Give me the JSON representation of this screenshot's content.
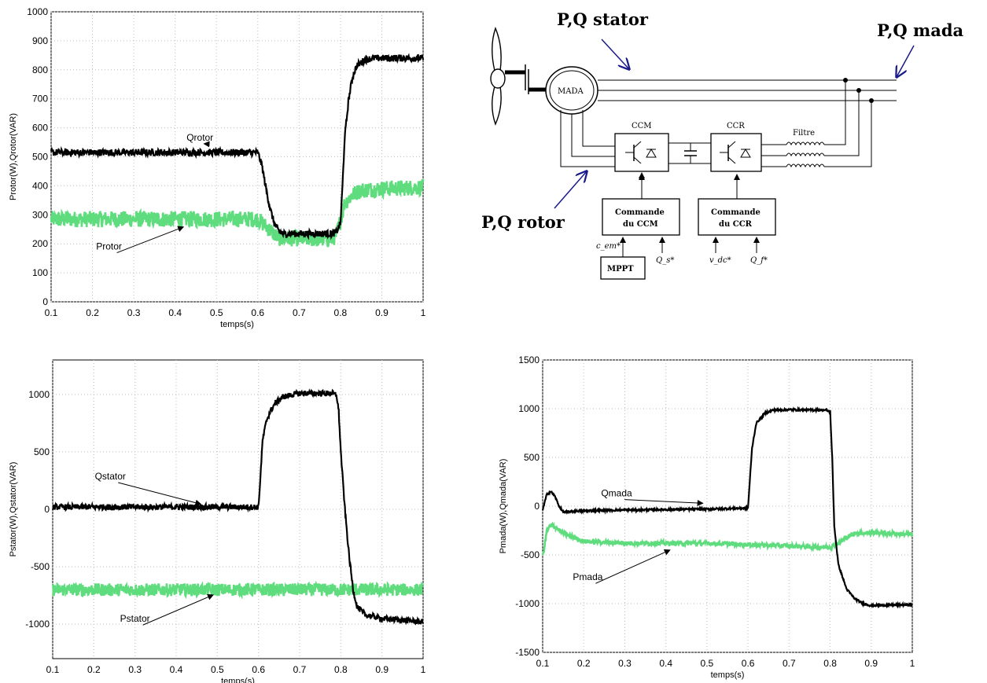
{
  "chart_data": [
    {
      "type": "line",
      "xlabel": "temps(s)",
      "ylabel": "Protor(W),Qrotor(VAR)",
      "xlim": [
        0.1,
        1
      ],
      "ylim": [
        0,
        1000
      ],
      "xticks": [
        "0.1",
        "0.2",
        "0.3",
        "0.4",
        "0.5",
        "0.6",
        "0.7",
        "0.8",
        "0.9",
        "1"
      ],
      "yticks": [
        "0",
        "100",
        "200",
        "300",
        "400",
        "500",
        "600",
        "700",
        "800",
        "900",
        "1000"
      ],
      "grid": true,
      "annotations": [
        {
          "text": "Qrotor",
          "x": 0.46,
          "y": 555,
          "arrow_to": [
            0.47,
            545
          ]
        },
        {
          "text": "Protor",
          "x": 0.24,
          "y": 180,
          "arrow_to": [
            0.42,
            258
          ]
        }
      ],
      "series": [
        {
          "name": "Qrotor",
          "color": "#000000",
          "noise": 12,
          "x": [
            0.1,
            0.6,
            0.61,
            0.62,
            0.63,
            0.64,
            0.65,
            0.66,
            0.78,
            0.79,
            0.8,
            0.805,
            0.81,
            0.82,
            0.83,
            0.84,
            0.86,
            0.88,
            0.9,
            1.0
          ],
          "y": [
            515,
            515,
            470,
            390,
            320,
            270,
            245,
            235,
            235,
            240,
            270,
            400,
            560,
            700,
            780,
            815,
            835,
            840,
            840,
            840
          ]
        },
        {
          "name": "Protor",
          "color": "#5fdc7d",
          "noise": 28,
          "x": [
            0.1,
            0.6,
            0.62,
            0.65,
            0.78,
            0.79,
            0.8,
            0.81,
            0.83,
            0.85,
            0.9,
            1.0
          ],
          "y": [
            285,
            285,
            260,
            220,
            215,
            230,
            280,
            340,
            370,
            385,
            390,
            395
          ]
        }
      ]
    },
    {
      "type": "line",
      "xlabel": "temps(s)",
      "ylabel": "Pstator(W),Qstator(VAR)",
      "xlim": [
        0.1,
        1
      ],
      "ylim": [
        -1300,
        1300
      ],
      "xticks": [
        "0.1",
        "0.2",
        "0.3",
        "0.4",
        "0.5",
        "0.6",
        "0.7",
        "0.8",
        "0.9",
        "1"
      ],
      "yticks": [
        "-1000",
        "-500",
        "0",
        "500",
        "1000"
      ],
      "ytick_values": [
        -1000,
        -500,
        0,
        500,
        1000
      ],
      "grid": true,
      "annotations": [
        {
          "text": "Qstator",
          "x": 0.24,
          "y": 260,
          "arrow_to": [
            0.46,
            45
          ]
        },
        {
          "text": "Pstator",
          "x": 0.3,
          "y": -980,
          "arrow_to": [
            0.49,
            -745
          ]
        }
      ],
      "series": [
        {
          "name": "Qstator",
          "color": "#000000",
          "noise": 25,
          "x": [
            0.1,
            0.6,
            0.605,
            0.61,
            0.62,
            0.63,
            0.64,
            0.66,
            0.7,
            0.78,
            0.79,
            0.795,
            0.8,
            0.81,
            0.82,
            0.83,
            0.84,
            0.86,
            0.9,
            1.0
          ],
          "y": [
            20,
            20,
            300,
            600,
            780,
            860,
            920,
            980,
            1010,
            1010,
            990,
            850,
            500,
            0,
            -400,
            -700,
            -850,
            -920,
            -950,
            -980
          ]
        },
        {
          "name": "Pstator",
          "color": "#5fdc7d",
          "noise": 55,
          "x": [
            0.1,
            1.0
          ],
          "y": [
            -700,
            -700
          ]
        }
      ]
    },
    {
      "type": "line",
      "xlabel": "temps(s)",
      "ylabel": "Pmada(W),Qmada(VAR)",
      "xlim": [
        0.1,
        1
      ],
      "ylim": [
        -1500,
        1500
      ],
      "xticks": [
        "0.1",
        "0.2",
        "0.3",
        "0.4",
        "0.5",
        "0.6",
        "0.7",
        "0.8",
        "0.9",
        "1"
      ],
      "yticks": [
        "-1500",
        "-1000",
        "-500",
        "0",
        "500",
        "1000",
        "1500"
      ],
      "ytick_values": [
        -1500,
        -1000,
        -500,
        0,
        500,
        1000,
        1500
      ],
      "grid": true,
      "annotations": [
        {
          "text": "Qmada",
          "x": 0.28,
          "y": 100,
          "arrow_to": [
            0.49,
            30
          ]
        },
        {
          "text": "Pmada",
          "x": 0.21,
          "y": -760,
          "arrow_to": [
            0.41,
            -450
          ]
        }
      ],
      "series": [
        {
          "name": "Qmada",
          "color": "#000000",
          "noise": 10,
          "x": [
            0.1,
            0.11,
            0.12,
            0.13,
            0.14,
            0.15,
            0.16,
            0.18,
            0.3,
            0.5,
            0.6,
            0.605,
            0.61,
            0.62,
            0.64,
            0.66,
            0.7,
            0.79,
            0.8,
            0.805,
            0.81,
            0.82,
            0.84,
            0.86,
            0.88,
            0.9,
            1.0
          ],
          "y": [
            -40,
            120,
            150,
            100,
            0,
            -60,
            -60,
            -50,
            -40,
            -30,
            -20,
            300,
            600,
            850,
            950,
            985,
            990,
            985,
            970,
            500,
            -200,
            -600,
            -850,
            -950,
            -1000,
            -1020,
            -1010
          ]
        },
        {
          "name": "Pmada",
          "color": "#5fdc7d",
          "noise": 22,
          "x": [
            0.1,
            0.105,
            0.11,
            0.12,
            0.13,
            0.15,
            0.2,
            0.3,
            0.5,
            0.78,
            0.8,
            0.82,
            0.84,
            0.86,
            0.9,
            1.0
          ],
          "y": [
            -520,
            -400,
            -250,
            -200,
            -210,
            -280,
            -360,
            -380,
            -380,
            -420,
            -420,
            -380,
            -320,
            -280,
            -270,
            -290
          ]
        }
      ]
    }
  ],
  "diagram": {
    "label_stator": "P,Q stator",
    "label_mada": "P,Q mada",
    "label_rotor": "P,Q rotor",
    "machine": "MADA",
    "ccm": "CCM",
    "ccr": "CCR",
    "filtre": "Filtre",
    "cmd_ccm_1": "Commande",
    "cmd_ccm_2": "du CCM",
    "cmd_ccr_1": "Commande",
    "cmd_ccr_2": "du CCR",
    "mppt": "MPPT",
    "in_cem": "c_em*",
    "in_qs": "Q_s*",
    "in_vdc": "v_dc*",
    "in_qf": "Q_f*"
  }
}
